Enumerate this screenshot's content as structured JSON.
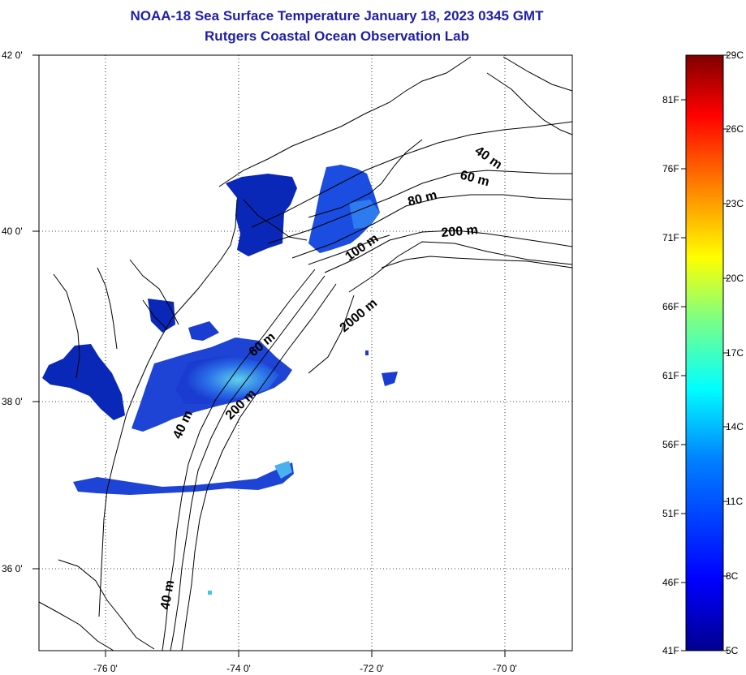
{
  "title": {
    "line1": "NOAA-18 Sea Surface Temperature January 18, 2023 0345 GMT",
    "line2": "Rutgers Coastal Ocean Observation Lab"
  },
  "map": {
    "lat_labels": [
      "42 0'",
      "40 0'",
      "38 0'",
      "36 0'"
    ],
    "lon_labels": [
      "-76 0'",
      "-74 0'",
      "-72 0'",
      "-70 0'"
    ],
    "lat_range": [
      35,
      42
    ],
    "lon_range": [
      -77,
      -69
    ],
    "contour_labels": [
      "40 m",
      "60 m",
      "80 m",
      "200 m",
      "100 m",
      "2000 m",
      "60 m",
      "200 m",
      "40 m",
      "40 m"
    ]
  },
  "colorbar": {
    "celsius_labels": [
      "29C",
      "26C",
      "23C",
      "20C",
      "17C",
      "14C",
      "11C",
      "8C",
      "5C"
    ],
    "fahrenheit_labels": [
      "81F",
      "76F",
      "71F",
      "66F",
      "61F",
      "56F",
      "51F",
      "46F",
      "41F"
    ],
    "colors": [
      "#7f0000",
      "#ff0000",
      "#ff8000",
      "#ffff00",
      "#80ff80",
      "#00ffff",
      "#0080ff",
      "#0000ff",
      "#00008f"
    ]
  },
  "sst_color_legend": {
    "cold": "#0a1eaa",
    "cool": "#1e50e6",
    "mild": "#3cc8e6"
  }
}
